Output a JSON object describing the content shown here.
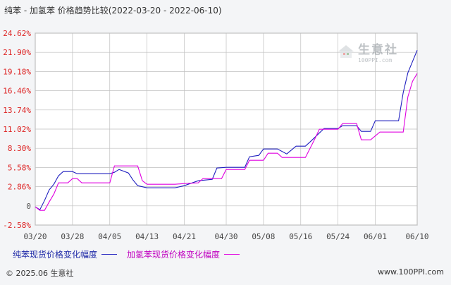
{
  "chart": {
    "title": "纯苯 - 加氢苯 价格趋势比较(2022-03-20 - 2022-06-10)",
    "footer_left": "© 2025.06 生意社",
    "footer_right": "www.100PPI.com",
    "watermark_text": "生意社",
    "watermark_sub": "100PPI.com",
    "colors": {
      "series1": "#1f1fbf",
      "series2": "#e000e0",
      "ytick": "#d22",
      "grid": "#bfbfbf",
      "plot_bg": "#ffffff"
    }
  },
  "chart_data": {
    "type": "line",
    "title": "纯苯 - 加氢苯 价格趋势比较(2022-03-20 - 2022-06-10)",
    "xlabel": "",
    "ylabel": "",
    "x_tick_labels": [
      "03/20",
      "03/28",
      "04/05",
      "04/13",
      "04/21",
      "04/30",
      "05/08",
      "05/16",
      "05/24",
      "06/01",
      "06/10"
    ],
    "y_tick_labels": [
      "-2.58%",
      "0",
      "2.86%",
      "5.58%",
      "8.30%",
      "11.02%",
      "13.74%",
      "16.46%",
      "19.18%",
      "21.90%",
      "24.62%"
    ],
    "ylim": [
      -2.58,
      24.62
    ],
    "unit": "%",
    "grid": true,
    "legend_position": "bottom",
    "series": [
      {
        "name": "纯苯现货价格变化幅度",
        "color": "#1f1fbf",
        "points": [
          [
            "03/20",
            0
          ],
          [
            "03/21",
            -0.4
          ],
          [
            "03/22",
            0.9
          ],
          [
            "03/23",
            2.4
          ],
          [
            "03/24",
            3.2
          ],
          [
            "03/25",
            4.4
          ],
          [
            "03/26",
            5.0
          ],
          [
            "03/28",
            5.0
          ],
          [
            "03/29",
            4.7
          ],
          [
            "04/05",
            4.7
          ],
          [
            "04/06",
            4.9
          ],
          [
            "04/07",
            5.3
          ],
          [
            "04/09",
            4.8
          ],
          [
            "04/10",
            3.8
          ],
          [
            "04/11",
            3.0
          ],
          [
            "04/13",
            2.7
          ],
          [
            "04/19",
            2.7
          ],
          [
            "04/21",
            3.0
          ],
          [
            "04/24",
            3.7
          ],
          [
            "04/27",
            3.9
          ],
          [
            "04/28",
            5.5
          ],
          [
            "04/30",
            5.6
          ],
          [
            "05/04",
            5.6
          ],
          [
            "05/05",
            7.1
          ],
          [
            "05/07",
            7.3
          ],
          [
            "05/08",
            8.2
          ],
          [
            "05/11",
            8.2
          ],
          [
            "05/13",
            7.5
          ],
          [
            "05/15",
            8.6
          ],
          [
            "05/17",
            8.6
          ],
          [
            "05/18",
            9.2
          ],
          [
            "05/21",
            11.1
          ],
          [
            "05/24",
            11.1
          ],
          [
            "05/25",
            11.5
          ],
          [
            "05/28",
            11.5
          ],
          [
            "05/29",
            10.7
          ],
          [
            "05/31",
            10.7
          ],
          [
            "06/01",
            12.2
          ],
          [
            "06/06",
            12.2
          ],
          [
            "06/07",
            16.2
          ],
          [
            "06/08",
            19.0
          ],
          [
            "06/10",
            22.2
          ]
        ]
      },
      {
        "name": "加氢苯现货价格变化幅度",
        "color": "#e000e0",
        "points": [
          [
            "03/20",
            0
          ],
          [
            "03/21",
            -0.5
          ],
          [
            "03/22",
            -0.5
          ],
          [
            "03/23",
            0.7
          ],
          [
            "03/24",
            1.8
          ],
          [
            "03/25",
            3.4
          ],
          [
            "03/27",
            3.4
          ],
          [
            "03/28",
            4.0
          ],
          [
            "03/29",
            4.0
          ],
          [
            "03/30",
            3.4
          ],
          [
            "04/05",
            3.4
          ],
          [
            "04/06",
            5.8
          ],
          [
            "04/11",
            5.8
          ],
          [
            "04/12",
            3.7
          ],
          [
            "04/13",
            3.2
          ],
          [
            "04/19",
            3.2
          ],
          [
            "04/21",
            3.3
          ],
          [
            "04/24",
            3.4
          ],
          [
            "04/25",
            4.0
          ],
          [
            "04/29",
            4.0
          ],
          [
            "04/30",
            5.3
          ],
          [
            "05/04",
            5.3
          ],
          [
            "05/05",
            6.6
          ],
          [
            "05/08",
            6.6
          ],
          [
            "05/09",
            7.6
          ],
          [
            "05/11",
            7.6
          ],
          [
            "05/12",
            7.0
          ],
          [
            "05/17",
            7.0
          ],
          [
            "05/18",
            8.3
          ],
          [
            "05/19",
            9.6
          ],
          [
            "05/20",
            11.0
          ],
          [
            "05/24",
            11.0
          ],
          [
            "05/25",
            11.8
          ],
          [
            "05/28",
            11.8
          ],
          [
            "05/29",
            9.5
          ],
          [
            "05/31",
            9.5
          ],
          [
            "06/02",
            10.6
          ],
          [
            "06/07",
            10.6
          ],
          [
            "06/08",
            15.6
          ],
          [
            "06/09",
            17.8
          ],
          [
            "06/10",
            18.9
          ]
        ]
      }
    ]
  }
}
